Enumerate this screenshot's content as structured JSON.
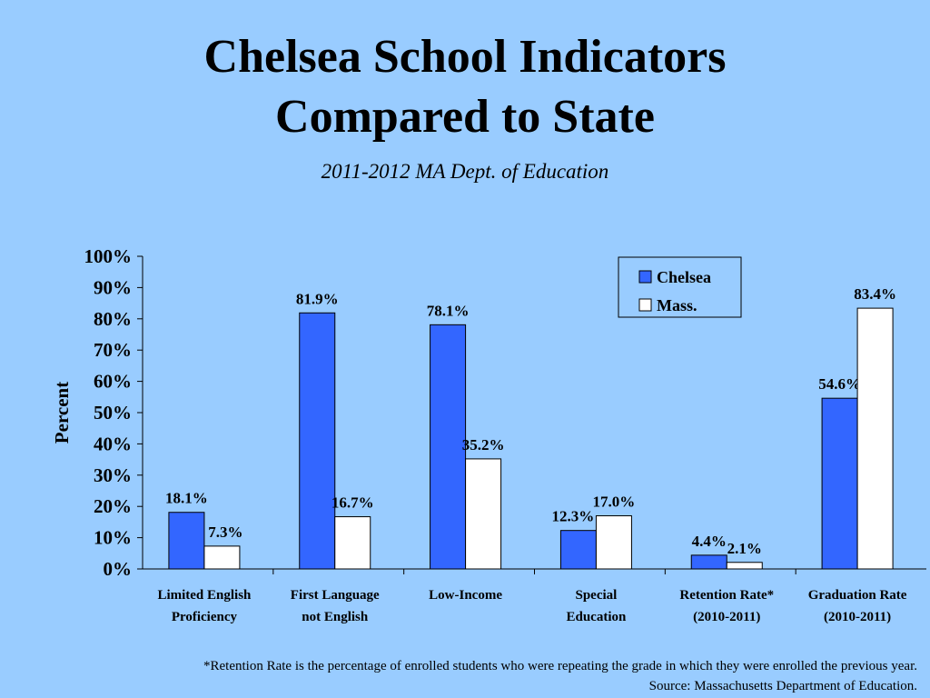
{
  "title_line1": "Chelsea School Indicators",
  "title_line2": "Compared to State",
  "subtitle": "2011-2012 MA Dept. of Education",
  "footnote_line1": "*Retention Rate is the percentage of enrolled students who were repeating the grade in which they were enrolled the previous year.",
  "footnote_line2": "Source: Massachusetts Department of Education.",
  "colors": {
    "background": "#99CCFF",
    "chelsea": "#3366FF",
    "mass": "#FFFFFF"
  },
  "chart_data": {
    "type": "bar",
    "title": "Chelsea School Indicators Compared to State",
    "subtitle": "2011-2012 MA Dept. of Education",
    "ylabel": "Percent",
    "xlabel": "",
    "ylim": [
      0,
      100
    ],
    "yticks": [
      "0%",
      "10%",
      "20%",
      "30%",
      "40%",
      "50%",
      "60%",
      "70%",
      "80%",
      "90%",
      "100%"
    ],
    "legend_position": "top-right",
    "grid": false,
    "categories": [
      [
        "Limited English",
        "Proficiency"
      ],
      [
        "First Language",
        "not English"
      ],
      [
        "Low-Income"
      ],
      [
        "Special",
        "Education"
      ],
      [
        "Retention Rate*",
        "(2010-2011)"
      ],
      [
        "Graduation Rate",
        "(2010-2011)"
      ]
    ],
    "series": [
      {
        "name": "Chelsea",
        "values": [
          18.1,
          81.9,
          78.1,
          12.3,
          4.4,
          54.6
        ],
        "labels": [
          "18.1%",
          "81.9%",
          "78.1%",
          "12.3%",
          "4.4%",
          "54.6%"
        ]
      },
      {
        "name": "Mass.",
        "values": [
          7.3,
          16.7,
          35.2,
          17.0,
          2.1,
          83.4
        ],
        "labels": [
          "7.3%",
          "16.7%",
          "35.2%",
          "17.0%",
          "2.1%",
          "83.4%"
        ]
      }
    ]
  }
}
